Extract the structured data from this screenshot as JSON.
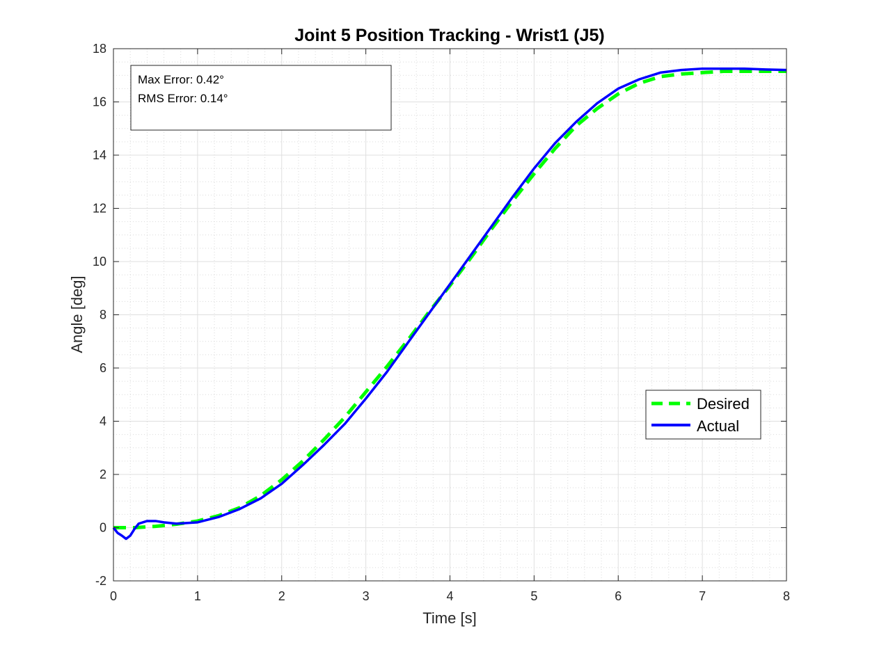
{
  "chart_data": {
    "type": "line",
    "title": "Joint 5 Position Tracking - Wrist1 (J5)",
    "xlabel": "Time [s]",
    "ylabel": "Angle [deg]",
    "xlim": [
      0,
      8
    ],
    "ylim": [
      -2,
      18
    ],
    "xticks": [
      0,
      1,
      2,
      3,
      4,
      5,
      6,
      7,
      8
    ],
    "yticks": [
      -2,
      0,
      2,
      4,
      6,
      8,
      10,
      12,
      14,
      16,
      18
    ],
    "grid": true,
    "minor_grid": true,
    "legend": {
      "position": "right",
      "entries": [
        "Desired",
        "Actual"
      ]
    },
    "annotation": [
      "Max Error: 0.42°",
      "RMS Error: 0.14°"
    ],
    "series": [
      {
        "name": "Desired",
        "color": "#00ff00",
        "dash": true,
        "x": [
          0,
          0.25,
          0.5,
          0.75,
          1.0,
          1.25,
          1.5,
          1.75,
          2.0,
          2.25,
          2.5,
          2.75,
          3.0,
          3.25,
          3.5,
          3.75,
          4.0,
          4.25,
          4.5,
          4.75,
          5.0,
          5.25,
          5.5,
          5.75,
          6.0,
          6.25,
          6.5,
          6.75,
          7.0,
          7.25,
          7.5,
          7.75,
          8.0
        ],
        "values": [
          0.0,
          0.0,
          0.05,
          0.13,
          0.25,
          0.45,
          0.75,
          1.2,
          1.8,
          2.5,
          3.3,
          4.15,
          5.1,
          6.05,
          7.05,
          8.1,
          9.1,
          10.15,
          11.25,
          12.3,
          13.3,
          14.25,
          15.1,
          15.75,
          16.3,
          16.7,
          16.95,
          17.05,
          17.1,
          17.15,
          17.15,
          17.15,
          17.15
        ]
      },
      {
        "name": "Actual",
        "color": "#0000ff",
        "dash": false,
        "x": [
          0,
          0.05,
          0.1,
          0.15,
          0.2,
          0.25,
          0.3,
          0.4,
          0.5,
          0.6,
          0.75,
          1.0,
          1.25,
          1.5,
          1.75,
          2.0,
          2.25,
          2.5,
          2.75,
          3.0,
          3.25,
          3.5,
          3.75,
          4.0,
          4.25,
          4.5,
          4.75,
          5.0,
          5.25,
          5.5,
          5.75,
          6.0,
          6.25,
          6.5,
          6.75,
          7.0,
          7.25,
          7.5,
          7.75,
          8.0
        ],
        "values": [
          0.0,
          -0.2,
          -0.3,
          -0.42,
          -0.3,
          -0.05,
          0.15,
          0.25,
          0.25,
          0.2,
          0.15,
          0.2,
          0.4,
          0.7,
          1.1,
          1.65,
          2.35,
          3.1,
          3.9,
          4.85,
          5.85,
          6.95,
          8.05,
          9.15,
          10.25,
          11.35,
          12.45,
          13.5,
          14.45,
          15.25,
          15.95,
          16.5,
          16.85,
          17.1,
          17.2,
          17.25,
          17.25,
          17.25,
          17.22,
          17.2
        ]
      }
    ]
  }
}
